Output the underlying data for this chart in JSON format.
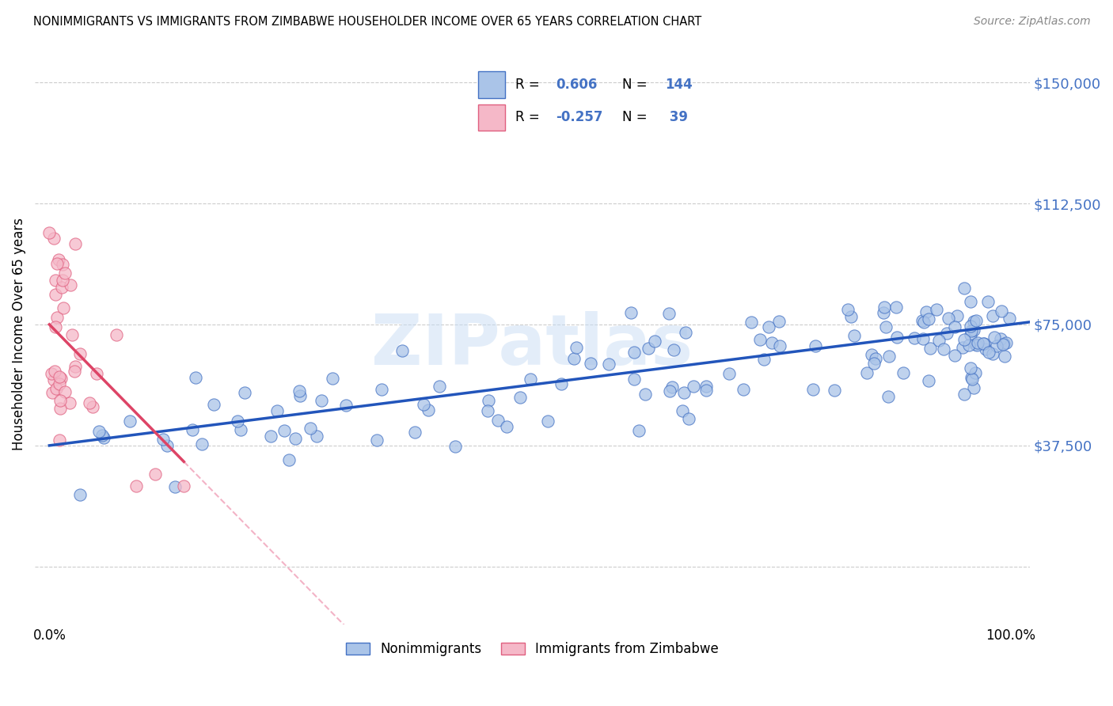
{
  "title": "NONIMMIGRANTS VS IMMIGRANTS FROM ZIMBABWE HOUSEHOLDER INCOME OVER 65 YEARS CORRELATION CHART",
  "source": "Source: ZipAtlas.com",
  "ylabel": "Householder Income Over 65 years",
  "nonimm_color": "#aac4e8",
  "nonimm_edge_color": "#4472c4",
  "imm_color": "#f5b8c8",
  "imm_edge_color": "#e06080",
  "nonimm_line_color": "#2255bb",
  "imm_line_color": "#dd4466",
  "imm_dash_color": "#f0a0b8",
  "blue_label_color": "#4472c4",
  "grid_color": "#cccccc",
  "watermark_color": "#c8ddf5",
  "yticks": [
    0,
    37500,
    75000,
    112500,
    150000
  ],
  "ytick_labels_right": [
    "",
    "$37,500",
    "$75,000",
    "$112,500",
    "$150,000"
  ],
  "ylim_low": -18000,
  "ylim_high": 162000,
  "xlim_low": -0.015,
  "xlim_high": 1.02
}
